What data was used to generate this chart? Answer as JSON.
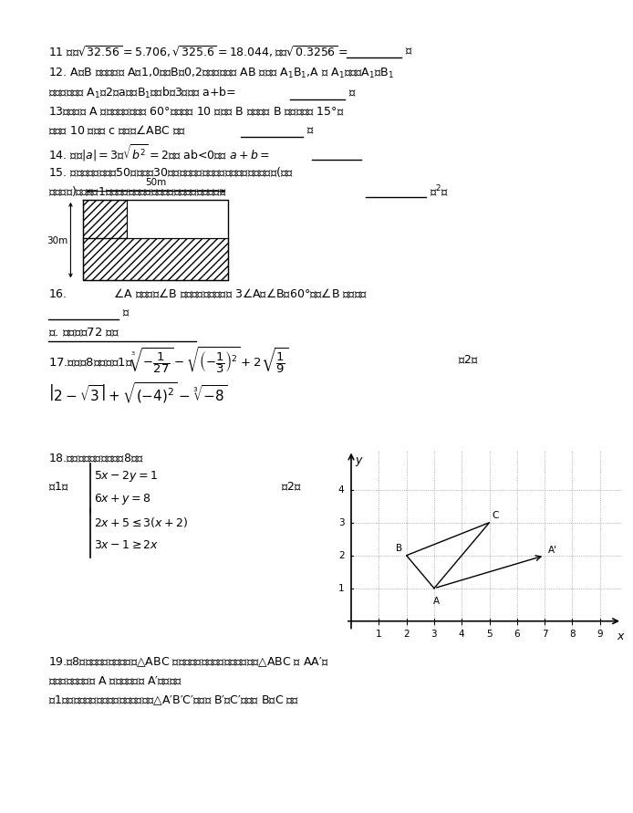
{
  "bg_color": "#ffffff",
  "page_width": 8.0,
  "page_height": 11.32,
  "fs": 9.0,
  "fs_math": 9.5,
  "A": [
    3,
    1
  ],
  "B": [
    2,
    2
  ],
  "C": [
    5,
    3
  ],
  "Ap": [
    7,
    2
  ]
}
